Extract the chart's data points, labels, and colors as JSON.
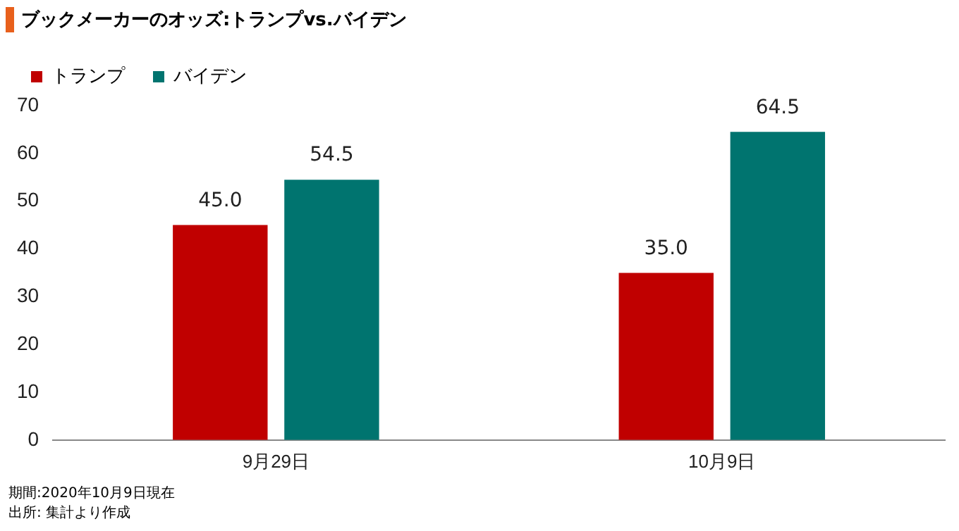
{
  "chart_data": {
    "type": "bar",
    "title": "ブックメーカーのオッズ:トランプvs.バイデン",
    "categories": [
      "9月29日",
      "10月9日"
    ],
    "series": [
      {
        "name": "トランプ",
        "color": "#c00000",
        "values": [
          45.0,
          35.0
        ],
        "value_labels": [
          "45.0",
          "35.0"
        ]
      },
      {
        "name": "バイデン",
        "color": "#00746f",
        "values": [
          54.5,
          64.5
        ],
        "value_labels": [
          "54.5",
          "64.5"
        ]
      }
    ],
    "ylim": [
      0,
      70
    ],
    "yticks": [
      0,
      10,
      20,
      30,
      40,
      50,
      60,
      70
    ],
    "grid": false,
    "legend": "top left",
    "annotations": [
      "期間:2020年10月9日現在",
      "出所: 集計より作成"
    ]
  }
}
